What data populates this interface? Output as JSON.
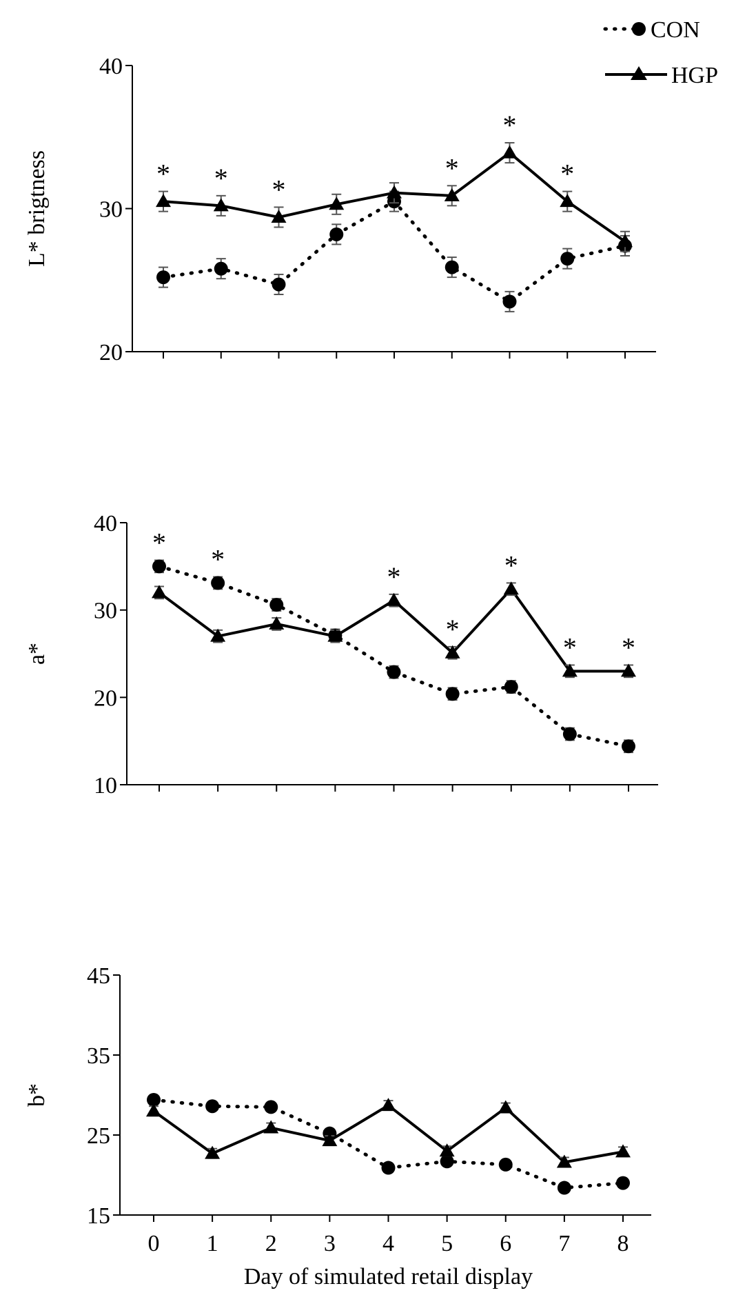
{
  "chart_data": [
    {
      "type": "line",
      "ylabel": "L* brigtness",
      "xlabel": "",
      "ylim": [
        20,
        40
      ],
      "yticks": [
        20,
        30,
        40
      ],
      "x": [
        0,
        1,
        2,
        3,
        4,
        5,
        6,
        7,
        8
      ],
      "show_x_tick_labels": false,
      "series": [
        {
          "name": "CON",
          "style": "dotted-circle",
          "values": [
            25.2,
            25.8,
            24.7,
            28.2,
            30.5,
            25.9,
            23.5,
            26.5,
            27.4
          ],
          "error": [
            0.7,
            0.7,
            0.7,
            0.7,
            0.7,
            0.7,
            0.7,
            0.7,
            0.7
          ]
        },
        {
          "name": "HGP",
          "style": "solid-triangle",
          "values": [
            30.5,
            30.2,
            29.4,
            30.3,
            31.1,
            30.9,
            33.9,
            30.5,
            27.7
          ],
          "error": [
            0.7,
            0.7,
            0.7,
            0.7,
            0.7,
            0.7,
            0.7,
            0.7,
            0.7
          ]
        }
      ],
      "significance": {
        "marker": "*",
        "days": [
          0,
          1,
          2,
          5,
          6,
          7
        ]
      }
    },
    {
      "type": "line",
      "ylabel": "a*",
      "xlabel": "",
      "ylim": [
        10,
        40
      ],
      "yticks": [
        10,
        20,
        30,
        40
      ],
      "x": [
        0,
        1,
        2,
        3,
        4,
        5,
        6,
        7,
        8
      ],
      "show_x_tick_labels": false,
      "series": [
        {
          "name": "CON",
          "style": "dotted-circle",
          "values": [
            35.0,
            33.1,
            30.6,
            27.1,
            22.9,
            20.4,
            21.2,
            15.8,
            14.4
          ],
          "error": [
            0.7,
            0.7,
            0.7,
            0.7,
            0.7,
            0.7,
            0.7,
            0.7,
            0.7
          ]
        },
        {
          "name": "HGP",
          "style": "solid-triangle",
          "values": [
            32.0,
            27.0,
            28.4,
            27.0,
            31.1,
            25.1,
            32.4,
            23.0,
            23.0
          ],
          "error": [
            0.7,
            0.7,
            0.7,
            0.7,
            0.7,
            0.7,
            0.7,
            0.7,
            0.7
          ]
        }
      ],
      "significance": {
        "marker": "*",
        "days": [
          0,
          1,
          4,
          5,
          6,
          7,
          8
        ]
      }
    },
    {
      "type": "line",
      "ylabel": "b*",
      "xlabel": "Day of simulated retail display",
      "ylim": [
        15,
        45
      ],
      "yticks": [
        15,
        25,
        35,
        45
      ],
      "x": [
        0,
        1,
        2,
        3,
        4,
        5,
        6,
        7,
        8
      ],
      "show_x_tick_labels": true,
      "series": [
        {
          "name": "CON",
          "style": "dotted-circle",
          "values": [
            29.4,
            28.6,
            28.5,
            25.2,
            20.9,
            21.7,
            21.3,
            18.4,
            19.0
          ],
          "error": [
            0.4,
            0.4,
            0.4,
            0.4,
            0.4,
            0.4,
            0.4,
            0.4,
            0.4
          ]
        },
        {
          "name": "HGP",
          "style": "solid-triangle",
          "values": [
            28.0,
            22.7,
            25.9,
            24.3,
            28.7,
            23.0,
            28.4,
            21.6,
            22.9
          ],
          "error": [
            0.6,
            0.6,
            0.6,
            0.6,
            0.6,
            0.6,
            0.6,
            0.6,
            0.6
          ]
        }
      ],
      "significance": {
        "marker": "*",
        "days": []
      }
    }
  ],
  "legend": {
    "position": "top-right",
    "entries": [
      {
        "label": "CON",
        "style": "dotted-circle"
      },
      {
        "label": "HGP",
        "style": "solid-triangle"
      }
    ]
  }
}
